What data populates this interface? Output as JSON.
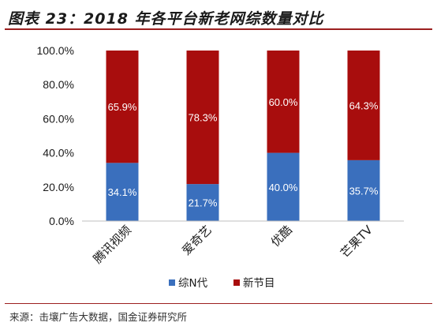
{
  "header": {
    "title": "图表 23：2018 年各平台新老网综数量对比"
  },
  "footer": {
    "source": "来源：击壤广告大数据，国金证券研究所"
  },
  "colors": {
    "series_1": "#3a6fbd",
    "series_2": "#a80d0d",
    "accent_line": "#9c1f1f"
  },
  "chart_data": {
    "type": "bar",
    "stacked": true,
    "categories": [
      "腾讯视频",
      "爱奇艺",
      "优酷",
      "芒果TV"
    ],
    "series": [
      {
        "name": "综N代",
        "values": [
          34.1,
          21.7,
          40.0,
          35.7
        ],
        "labels": [
          "34.1%",
          "21.7%",
          "40.0%",
          "35.7%"
        ]
      },
      {
        "name": "新节目",
        "values": [
          65.9,
          78.3,
          60.0,
          64.3
        ],
        "labels": [
          "65.9%",
          "78.3%",
          "60.0%",
          "64.3%"
        ]
      }
    ],
    "yticks": [
      "0.0%",
      "20.0%",
      "40.0%",
      "60.0%",
      "80.0%",
      "100.0%"
    ],
    "ylim": [
      0,
      100
    ],
    "legend_position": "bottom",
    "grid": false
  }
}
